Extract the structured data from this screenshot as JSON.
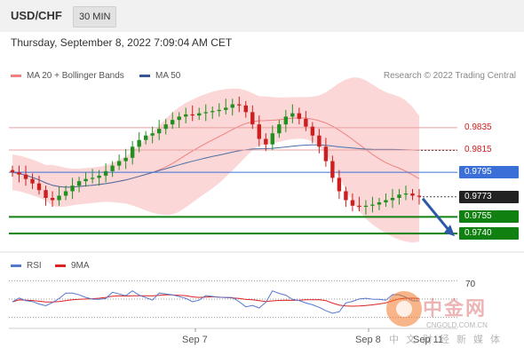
{
  "header": {
    "pair": "USD/CHF",
    "timeframe": "30 MIN",
    "datetime": "Thursday, September 8, 2022 7:09:04 AM CET"
  },
  "legend": {
    "bollinger_label": "MA 20 + Bollinger Bands",
    "ma50_label": "MA 50",
    "credit": "Research © 2022 Trading Central"
  },
  "levels": {
    "r2": "0.9835",
    "r1": "0.9815",
    "pivot": "0.9795",
    "last": "0.9773",
    "s1": "0.9755",
    "s2": "0.9740"
  },
  "rsi": {
    "label": "RSI",
    "ma_label": "9MA",
    "level70": "70"
  },
  "xaxis": {
    "tick1": "Sep 7",
    "tick2": "Sep 8",
    "tick3": "Sep 11"
  },
  "watermark": {
    "name": "中金网",
    "url": "CNGOLD.COM.CN",
    "slogan": "中文财经新媒体"
  },
  "colors": {
    "bollinger": "#f08080",
    "ma50": "#4a6fa5",
    "pivot": "#3b6fd8",
    "support": "#108010",
    "rsi": "#5577cc",
    "rsi_ma": "#dd2222",
    "up": "#209020",
    "down": "#cc2020"
  },
  "chart_data": {
    "type": "candlestick",
    "symbol": "USD/CHF",
    "interval": "30 MIN",
    "ylim": [
      0.9725,
      0.987
    ],
    "close": [
      0.9795,
      0.9793,
      0.9789,
      0.9785,
      0.9779,
      0.9772,
      0.977,
      0.9774,
      0.9778,
      0.9783,
      0.9787,
      0.9789,
      0.979,
      0.9792,
      0.9796,
      0.9801,
      0.9805,
      0.9808,
      0.9818,
      0.9824,
      0.9828,
      0.983,
      0.9834,
      0.9838,
      0.9842,
      0.9845,
      0.9847,
      0.9846,
      0.9848,
      0.9849,
      0.985,
      0.9851,
      0.9853,
      0.9856,
      0.9855,
      0.9849,
      0.9838,
      0.9825,
      0.982,
      0.983,
      0.9838,
      0.9845,
      0.9848,
      0.9843,
      0.9836,
      0.9828,
      0.9818,
      0.9805,
      0.979,
      0.9778,
      0.977,
      0.9765,
      0.9764,
      0.9765,
      0.9766,
      0.9768,
      0.977,
      0.9772,
      0.9775,
      0.9776,
      0.9774,
      0.9773
    ],
    "levels": {
      "resistance": [
        0.9835,
        0.9815
      ],
      "pivot": 0.9795,
      "last": 0.9773,
      "support": [
        0.9755,
        0.974
      ]
    },
    "forecast": "down",
    "series": [
      {
        "name": "MA 20 + Bollinger Bands",
        "type": "band"
      },
      {
        "name": "MA 50",
        "type": "line"
      },
      {
        "name": "RSI",
        "panel": "rsi"
      },
      {
        "name": "9MA",
        "panel": "rsi"
      }
    ],
    "x_ticks": [
      "Sep 7",
      "Sep 8",
      "Sep 11"
    ],
    "rsi_levels": [
      70
    ]
  }
}
